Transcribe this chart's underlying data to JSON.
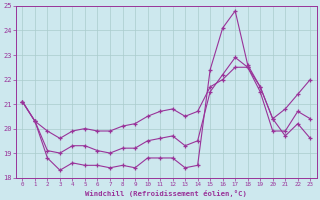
{
  "xlabel": "Windchill (Refroidissement éolien,°C)",
  "xlim": [
    -0.5,
    23.5
  ],
  "ylim": [
    18,
    25
  ],
  "yticks": [
    18,
    19,
    20,
    21,
    22,
    23,
    24,
    25
  ],
  "xticks": [
    0,
    1,
    2,
    3,
    4,
    5,
    6,
    7,
    8,
    9,
    10,
    11,
    12,
    13,
    14,
    15,
    16,
    17,
    18,
    19,
    20,
    21,
    22,
    23
  ],
  "bg_color": "#cde8ee",
  "grid_color": "#aacccc",
  "line_color": "#993399",
  "line1_y": [
    21.1,
    20.3,
    18.8,
    18.3,
    18.6,
    18.5,
    18.5,
    18.4,
    18.5,
    18.4,
    18.8,
    18.8,
    18.8,
    18.4,
    18.5,
    22.4,
    24.1,
    24.8,
    22.6,
    21.7,
    20.4,
    19.7,
    20.2,
    19.6
  ],
  "line2_y": [
    21.1,
    20.3,
    19.1,
    19.0,
    19.3,
    19.3,
    19.1,
    19.0,
    19.2,
    19.2,
    19.5,
    19.6,
    19.7,
    19.3,
    19.5,
    21.5,
    22.2,
    22.9,
    22.5,
    21.5,
    19.9,
    19.9,
    20.7,
    20.4
  ],
  "line3_y": [
    21.1,
    20.3,
    19.9,
    19.6,
    19.9,
    20.0,
    19.9,
    19.9,
    20.1,
    20.2,
    20.5,
    20.7,
    20.8,
    20.5,
    20.7,
    21.7,
    22.0,
    22.5,
    22.5,
    21.7,
    20.4,
    20.8,
    21.4,
    22.0
  ]
}
